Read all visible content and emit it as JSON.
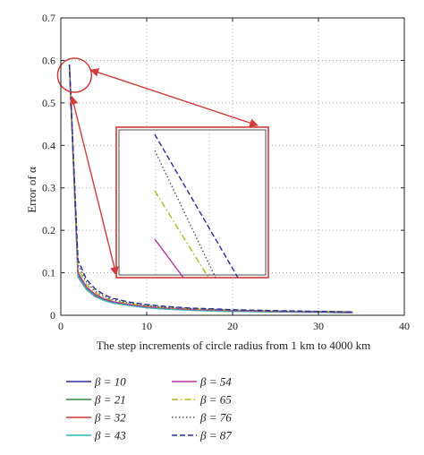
{
  "chart_data": {
    "type": "line",
    "title": "",
    "xlabel": "The step increments of circle radius from 1 km to 4000 km",
    "ylabel": "Error of α",
    "xlim": [
      0,
      40
    ],
    "ylim": [
      0,
      0.7
    ],
    "xticks": [
      0,
      10,
      20,
      30,
      40
    ],
    "yticks": [
      0,
      0.1,
      0.2,
      0.3,
      0.4,
      0.5,
      0.6,
      0.7
    ],
    "ytick_labels": [
      "0",
      "0.1",
      "0.2",
      "0.3",
      "0.4",
      "0.5",
      "0.6",
      "0.7"
    ],
    "grid": true,
    "legend_position": "below",
    "inset": true,
    "x": [
      1,
      2,
      3,
      4,
      5,
      6,
      8,
      10,
      12,
      15,
      18,
      20,
      25,
      30,
      34
    ],
    "series": [
      {
        "name": "β = 10",
        "color": "#2b2f9c",
        "dash": "solid",
        "values": [
          0.59,
          0.1,
          0.065,
          0.048,
          0.038,
          0.032,
          0.025,
          0.02,
          0.017,
          0.014,
          0.012,
          0.011,
          0.009,
          0.008,
          0.007
        ]
      },
      {
        "name": "β = 21",
        "color": "#2e8b3a",
        "dash": "solid",
        "values": [
          0.59,
          0.095,
          0.062,
          0.046,
          0.036,
          0.03,
          0.024,
          0.019,
          0.016,
          0.013,
          0.011,
          0.01,
          0.008,
          0.007,
          0.006
        ]
      },
      {
        "name": "β = 32",
        "color": "#d13b3b",
        "dash": "solid",
        "values": [
          0.59,
          0.09,
          0.06,
          0.044,
          0.035,
          0.029,
          0.023,
          0.018,
          0.015,
          0.012,
          0.01,
          0.009,
          0.008,
          0.007,
          0.006
        ]
      },
      {
        "name": "β = 43",
        "color": "#27c1c1",
        "dash": "solid",
        "values": [
          0.59,
          0.092,
          0.061,
          0.045,
          0.035,
          0.029,
          0.023,
          0.018,
          0.015,
          0.012,
          0.01,
          0.009,
          0.008,
          0.007,
          0.006
        ]
      },
      {
        "name": "β = 54",
        "color": "#b0359e",
        "dash": "solid",
        "values": [
          0.59,
          0.1,
          0.066,
          0.049,
          0.039,
          0.032,
          0.025,
          0.02,
          0.017,
          0.014,
          0.012,
          0.011,
          0.009,
          0.008,
          0.007
        ]
      },
      {
        "name": "β = 65",
        "color": "#b5b51e",
        "dash": "dashdot",
        "values": [
          0.59,
          0.11,
          0.072,
          0.053,
          0.042,
          0.035,
          0.027,
          0.022,
          0.018,
          0.015,
          0.013,
          0.012,
          0.01,
          0.009,
          0.008
        ]
      },
      {
        "name": "β = 76",
        "color": "#555555",
        "dash": "dotted",
        "values": [
          0.59,
          0.12,
          0.078,
          0.057,
          0.045,
          0.037,
          0.029,
          0.023,
          0.019,
          0.016,
          0.014,
          0.012,
          0.01,
          0.009,
          0.008
        ]
      },
      {
        "name": "β = 87",
        "color": "#2b2f9c",
        "dash": "dashed",
        "values": [
          0.59,
          0.13,
          0.084,
          0.062,
          0.049,
          0.04,
          0.031,
          0.025,
          0.021,
          0.017,
          0.015,
          0.013,
          0.011,
          0.009,
          0.008
        ]
      }
    ],
    "inset_series": [
      {
        "name": "β = 54",
        "color": "#b0359e",
        "dash": "solid"
      },
      {
        "name": "β = 65",
        "color": "#b5b51e",
        "dash": "dashdot"
      },
      {
        "name": "β = 76",
        "color": "#555555",
        "dash": "dotted"
      },
      {
        "name": "β = 87",
        "color": "#2b2f9c",
        "dash": "dashed"
      }
    ],
    "annotation_color": "#d13b3b"
  }
}
